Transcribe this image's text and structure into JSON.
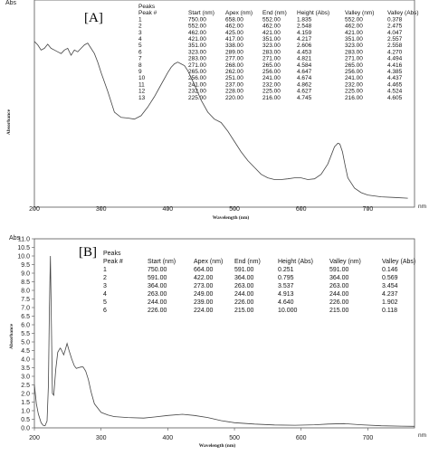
{
  "units_label": "nm",
  "chart_data": [
    {
      "type": "line",
      "panel_label": "[A]",
      "ylabel_top": "Abs",
      "ylabel": "Absorbance",
      "xlabel": "Wavelength (nm)",
      "x_ticks": [
        "200",
        "300",
        "400",
        "500",
        "600",
        "700"
      ],
      "y_ticks": [],
      "xlim": [
        200,
        770
      ],
      "ylim": [
        0,
        6.0
      ],
      "grid": false,
      "peaks_table": {
        "title": "Peaks",
        "columns": [
          "Peak #",
          "Start (nm)",
          "Apex (nm)",
          "End (nm)",
          "Height (Abs)",
          "Valley (nm)",
          "Valley (Abs)"
        ],
        "rows": [
          [
            "1",
            "750.00",
            "658.00",
            "552.00",
            "1.835",
            "552.00",
            "0.378"
          ],
          [
            "2",
            "552.00",
            "462.00",
            "462.00",
            "2.548",
            "462.00",
            "2.475"
          ],
          [
            "3",
            "462.00",
            "425.00",
            "421.00",
            "4.159",
            "421.00",
            "4.047"
          ],
          [
            "4",
            "421.00",
            "417.00",
            "351.00",
            "4.217",
            "351.00",
            "2.557"
          ],
          [
            "5",
            "351.00",
            "338.00",
            "323.00",
            "2.606",
            "323.00",
            "2.558"
          ],
          [
            "6",
            "323.00",
            "289.00",
            "283.00",
            "4.453",
            "283.00",
            "4.270"
          ],
          [
            "7",
            "283.00",
            "277.00",
            "271.00",
            "4.821",
            "271.00",
            "4.494"
          ],
          [
            "8",
            "271.00",
            "268.00",
            "265.00",
            "4.584",
            "265.00",
            "4.416"
          ],
          [
            "9",
            "265.00",
            "262.00",
            "256.00",
            "4.647",
            "256.00",
            "4.385"
          ],
          [
            "10",
            "256.00",
            "251.00",
            "241.00",
            "4.674",
            "241.00",
            "4.437"
          ],
          [
            "11",
            "241.00",
            "237.00",
            "232.00",
            "4.862",
            "232.00",
            "4.465"
          ],
          [
            "12",
            "232.00",
            "228.00",
            "225.00",
            "4.627",
            "225.00",
            "4.524"
          ],
          [
            "13",
            "225.00",
            "220.00",
            "216.00",
            "4.745",
            "216.00",
            "4.605"
          ]
        ]
      },
      "series": [
        {
          "x": [
            200,
            205,
            210,
            215,
            220,
            225,
            230,
            235,
            240,
            245,
            250,
            255,
            260,
            265,
            270,
            275,
            280,
            285,
            290,
            295,
            300,
            310,
            320,
            330,
            340,
            350,
            360,
            370,
            380,
            390,
            400,
            405,
            410,
            415,
            420,
            425,
            430,
            440,
            450,
            460,
            470,
            480,
            490,
            500,
            510,
            520,
            530,
            540,
            550,
            560,
            570,
            580,
            590,
            600,
            610,
            620,
            630,
            640,
            645,
            650,
            655,
            658,
            662,
            666,
            670,
            680,
            690,
            700,
            720,
            740,
            760
          ],
          "y": [
            4.8,
            4.7,
            4.55,
            4.6,
            4.72,
            4.6,
            4.55,
            4.5,
            4.45,
            4.55,
            4.6,
            4.4,
            4.55,
            4.5,
            4.6,
            4.7,
            4.75,
            4.6,
            4.45,
            4.2,
            3.9,
            3.35,
            2.75,
            2.6,
            2.58,
            2.55,
            2.65,
            2.9,
            3.2,
            3.55,
            3.9,
            4.05,
            4.15,
            4.2,
            4.15,
            4.1,
            3.95,
            3.55,
            3.1,
            2.75,
            2.55,
            2.45,
            2.2,
            1.9,
            1.6,
            1.35,
            1.15,
            0.95,
            0.85,
            0.8,
            0.8,
            0.82,
            0.85,
            0.85,
            0.8,
            0.82,
            0.95,
            1.25,
            1.5,
            1.75,
            1.85,
            1.83,
            1.6,
            1.2,
            0.85,
            0.55,
            0.42,
            0.35,
            0.3,
            0.28,
            0.26
          ]
        }
      ]
    },
    {
      "type": "line",
      "panel_label": "[B]",
      "ylabel_top": "Abs",
      "ylabel": "Absorbance",
      "xlabel": "Wavelength (nm)",
      "x_ticks": [
        "200",
        "300",
        "400",
        "500",
        "600",
        "700"
      ],
      "y_ticks": [
        "0.0",
        "0.5",
        "1.0",
        "1.5",
        "2.0",
        "2.5",
        "3.0",
        "3.5",
        "4.0",
        "4.5",
        "5.0",
        "5.5",
        "6.0",
        "6.5",
        "7.0",
        "7.5",
        "8.0",
        "8.5",
        "9.0",
        "9.5",
        "10.0",
        "10.5",
        "11.0"
      ],
      "xlim": [
        200,
        770
      ],
      "ylim": [
        0,
        11
      ],
      "grid": false,
      "peaks_table": {
        "title": "Peaks",
        "columns": [
          "Peak #",
          "Start (nm)",
          "Apex (nm)",
          "End (nm)",
          "Height (Abs)",
          "Valley (nm)",
          "Valley (Abs)"
        ],
        "rows": [
          [
            "1",
            "750.00",
            "664.00",
            "591.00",
            "0.251",
            "591.00",
            "0.146"
          ],
          [
            "2",
            "591.00",
            "422.00",
            "364.00",
            "0.795",
            "364.00",
            "0.569"
          ],
          [
            "3",
            "364.00",
            "273.00",
            "263.00",
            "3.537",
            "263.00",
            "3.454"
          ],
          [
            "4",
            "263.00",
            "249.00",
            "244.00",
            "4.913",
            "244.00",
            "4.237"
          ],
          [
            "5",
            "244.00",
            "239.00",
            "226.00",
            "4.640",
            "226.00",
            "1.902"
          ],
          [
            "6",
            "226.00",
            "224.00",
            "215.00",
            "10.000",
            "215.00",
            "0.118"
          ]
        ]
      },
      "series": [
        {
          "x": [
            200,
            203,
            206,
            210,
            213,
            216,
            219,
            221,
            222.5,
            224,
            225.5,
            227,
            229,
            232,
            235,
            238,
            239,
            241,
            244,
            246,
            249,
            252,
            256,
            260,
            263,
            266,
            270,
            273,
            277,
            281,
            285,
            290,
            300,
            310,
            320,
            340,
            364,
            380,
            400,
            422,
            440,
            460,
            480,
            500,
            530,
            560,
            591,
            620,
            640,
            664,
            690,
            720,
            750,
            770
          ],
          "y": [
            2.5,
            1.4,
            0.8,
            0.3,
            0.15,
            0.12,
            0.4,
            2.5,
            7.0,
            10.0,
            6.0,
            2.0,
            1.9,
            3.4,
            4.4,
            4.6,
            4.64,
            4.5,
            4.25,
            4.5,
            4.91,
            4.5,
            4.0,
            3.6,
            3.46,
            3.5,
            3.54,
            3.54,
            3.3,
            2.8,
            2.1,
            1.4,
            0.9,
            0.75,
            0.65,
            0.6,
            0.57,
            0.63,
            0.72,
            0.79,
            0.72,
            0.6,
            0.42,
            0.3,
            0.22,
            0.17,
            0.15,
            0.18,
            0.22,
            0.25,
            0.18,
            0.12,
            0.1,
            0.09
          ]
        }
      ]
    }
  ]
}
